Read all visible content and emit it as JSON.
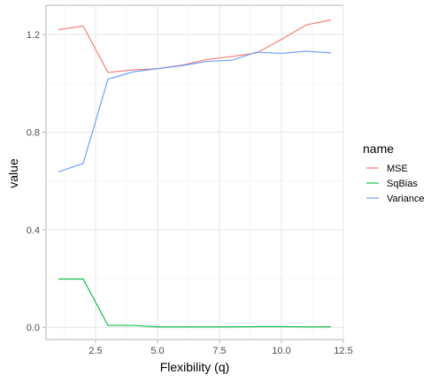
{
  "chart_data": {
    "type": "line",
    "title": "",
    "xlabel": "Flexibility (q)",
    "ylabel": "value",
    "x": [
      1,
      2,
      3,
      4,
      5,
      6,
      7,
      8,
      9,
      10,
      11,
      12
    ],
    "xlim": [
      0.5,
      12.5
    ],
    "ylim": [
      -0.05,
      1.32
    ],
    "xticks": [
      2.5,
      5.0,
      7.5,
      10.0,
      12.5
    ],
    "xtick_labels": [
      "2.5",
      "5.0",
      "7.5",
      "10.0",
      "12.5"
    ],
    "yticks": [
      0.0,
      0.4,
      0.8,
      1.2
    ],
    "ytick_labels": [
      "0.0",
      "0.4",
      "0.8",
      "1.2"
    ],
    "grid": true,
    "legend_placement": "right",
    "legend_title": "name",
    "series": [
      {
        "name": "MSE",
        "color": "#F8766D",
        "values": [
          1.22,
          1.235,
          1.045,
          1.055,
          1.06,
          1.075,
          1.098,
          1.11,
          1.125,
          1.18,
          1.24,
          1.26
        ]
      },
      {
        "name": "SqBias",
        "color": "#00BA38",
        "values": [
          0.198,
          0.198,
          0.008,
          0.008,
          0.002,
          0.002,
          0.002,
          0.002,
          0.003,
          0.003,
          0.002,
          0.002
        ]
      },
      {
        "name": "Variance",
        "color": "#619CFF",
        "values": [
          0.637,
          0.672,
          1.017,
          1.047,
          1.06,
          1.073,
          1.09,
          1.095,
          1.128,
          1.123,
          1.132,
          1.125
        ]
      }
    ]
  }
}
